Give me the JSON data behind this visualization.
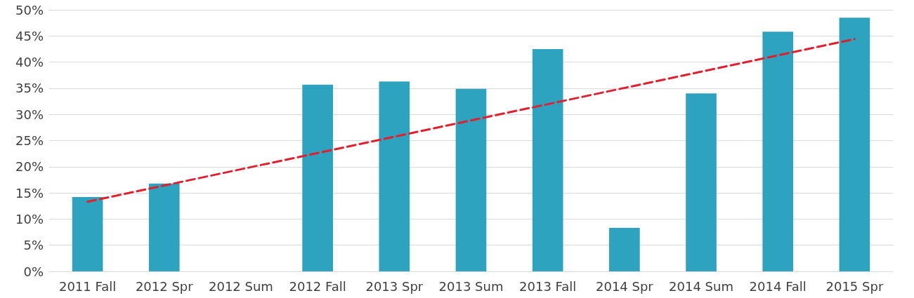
{
  "chart_data": {
    "type": "bar",
    "categories": [
      "2011 Fall",
      "2012 Spr",
      "2012 Sum",
      "2012 Fall",
      "2013 Spr",
      "2013 Sum",
      "2013 Fall",
      "2014 Spr",
      "2014 Sum",
      "2014 Fall",
      "2015 Spr"
    ],
    "series": [
      {
        "color": "#2ea3bf",
        "values": [
          14.2,
          16.8,
          0,
          35.7,
          36.3,
          34.9,
          42.5,
          8.3,
          34.0,
          45.8,
          48.5
        ]
      },
      {
        "type": "line",
        "color": "#e0202e",
        "line_style": "dashed",
        "marker": "none",
        "x": [
          "2011 Fall",
          "2015 Spr"
        ],
        "values": [
          13.3,
          44.4
        ]
      }
    ],
    "ylim": [
      0,
      50
    ],
    "yticks": [
      {
        "value": 0,
        "label": "0%"
      },
      {
        "value": 5,
        "label": "5%"
      },
      {
        "value": 10,
        "label": "10%"
      },
      {
        "value": 15,
        "label": "15%"
      },
      {
        "value": 20,
        "label": "20%"
      },
      {
        "value": 25,
        "label": "25%"
      },
      {
        "value": 30,
        "label": "30%"
      },
      {
        "value": 35,
        "label": "35%"
      },
      {
        "value": 40,
        "label": "40%"
      },
      {
        "value": 45,
        "label": "45%"
      },
      {
        "value": 50,
        "label": "50%"
      }
    ],
    "grid": "y"
  }
}
